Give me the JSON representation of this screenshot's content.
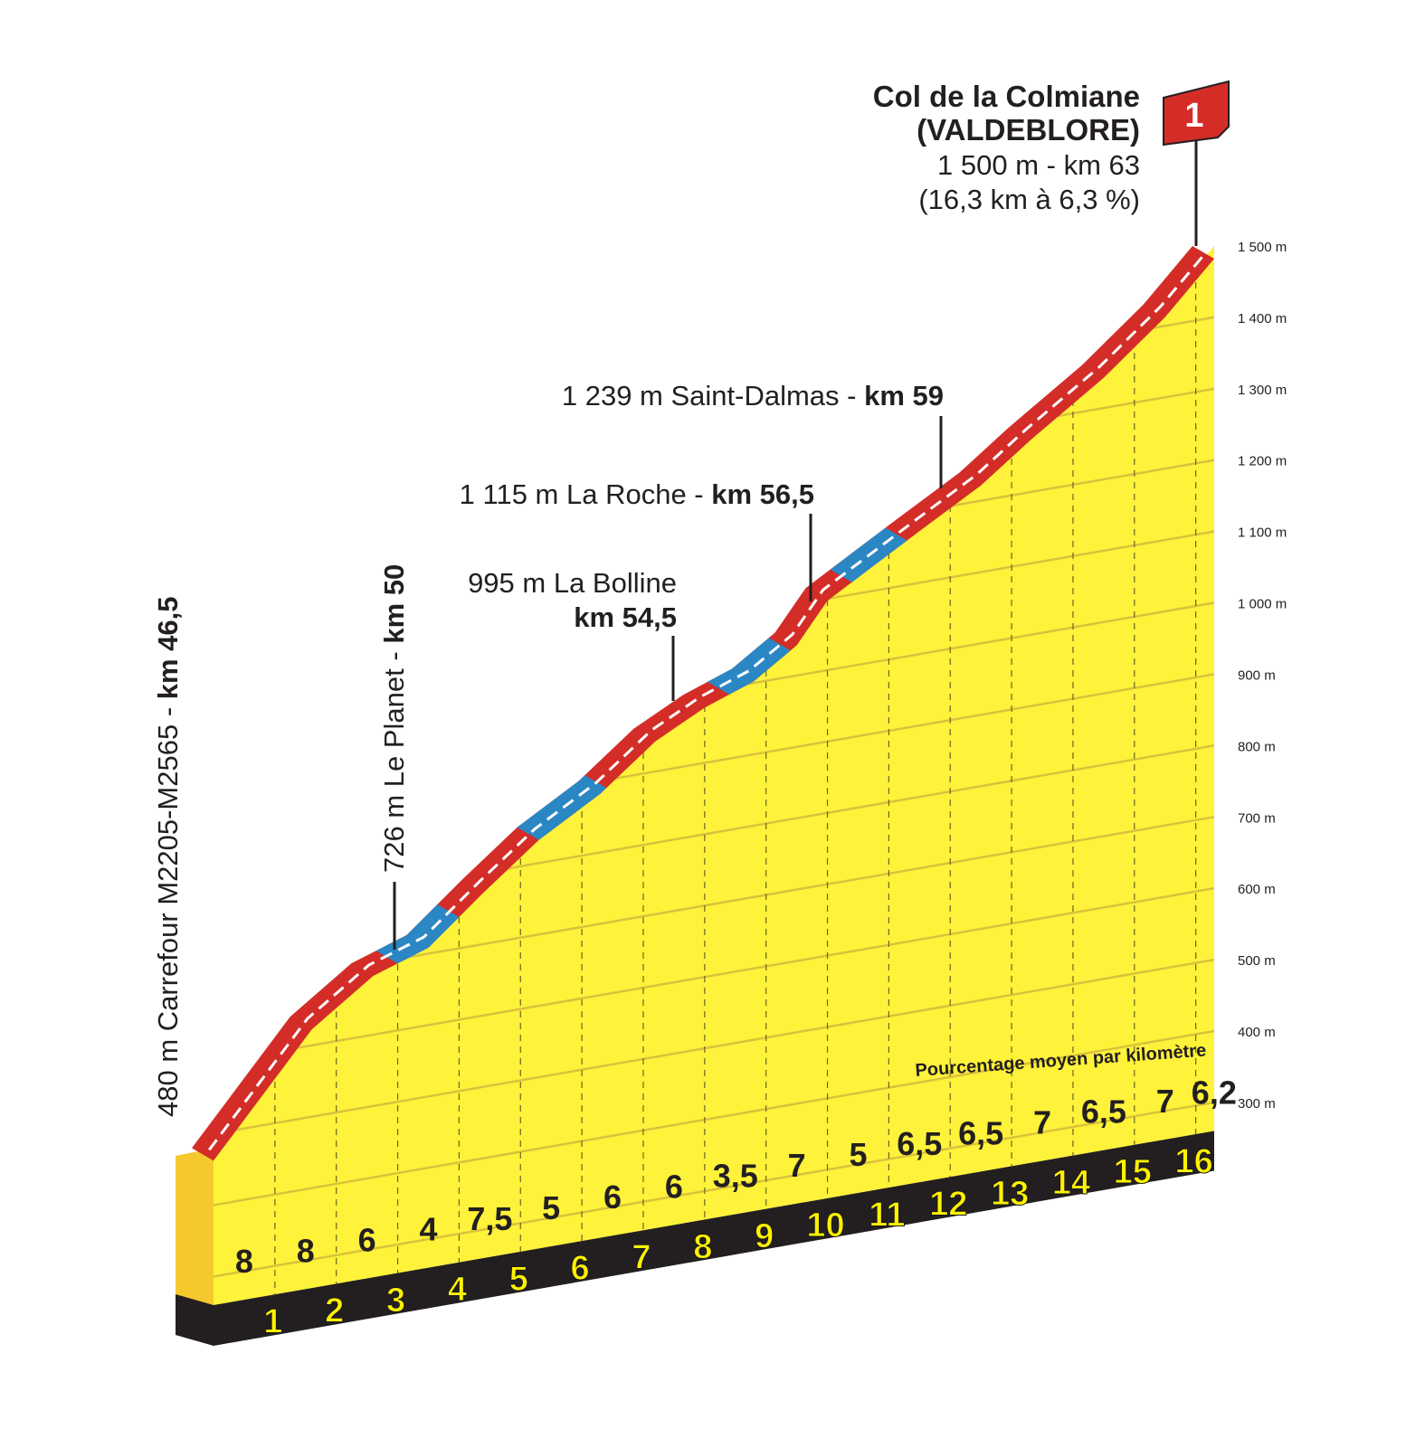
{
  "climb": {
    "name_line1": "Col de la Colmiane",
    "name_line2": "(VALDEBLORE)",
    "summary_line1": "1 500 m - km 63",
    "summary_line2": "(16,3 km à 6,3 %)",
    "category_badge": "1"
  },
  "annotations": {
    "start": {
      "text": "480 m Carrefour M2205-M2565 - ",
      "km": "km 46,5"
    },
    "planet": {
      "text": "726 m Le Planet - ",
      "km": "km 50"
    },
    "bolline": {
      "text": "995 m La Bolline",
      "km": "km 54,5"
    },
    "roche": {
      "text": "1 115 m La Roche - ",
      "km": "km 56,5"
    },
    "dalmas": {
      "text": "1 239 m Saint-Dalmas - ",
      "km": "km 59"
    }
  },
  "legend_note": "Pourcentage moyen par kilomètre",
  "y_axis_labels": [
    "300 m",
    "400 m",
    "500 m",
    "600 m",
    "700 m",
    "800 m",
    "900 m",
    "1 000 m",
    "1 100 m",
    "1 200 m",
    "1 300 m",
    "1 400 m",
    "1 500 m"
  ],
  "colors": {
    "fill": "#fff23a",
    "front_face": "#f5c92e",
    "road_steep": "#d42d27",
    "road_easy": "#2b87c4",
    "base": "#231f20",
    "km_number": "#fff200"
  },
  "chart_data": {
    "type": "area",
    "title": "Col de la Colmiane (VALDEBLORE)",
    "x_unit": "km",
    "y_unit": "m",
    "ylim": [
      300,
      1500
    ],
    "y_ticks": [
      300,
      400,
      500,
      600,
      700,
      800,
      900,
      1000,
      1100,
      1200,
      1300,
      1400,
      1500
    ],
    "km_markers": [
      "1",
      "2",
      "3",
      "4",
      "5",
      "6",
      "7",
      "8",
      "9",
      "10",
      "11",
      "12",
      "13",
      "14",
      "15",
      "16"
    ],
    "gradients_per_km": [
      "8",
      "8",
      "6",
      "4",
      "7,5",
      "5",
      "6",
      "6",
      "3,5",
      "7",
      "5",
      "6,5",
      "6,5",
      "7",
      "6,5",
      "7",
      "6,2"
    ],
    "profile": [
      {
        "km": 0,
        "alt": 480
      },
      {
        "km": 1.6,
        "alt": 640
      },
      {
        "km": 2.6,
        "alt": 700
      },
      {
        "km": 3.5,
        "alt": 726
      },
      {
        "km": 4.4,
        "alt": 790
      },
      {
        "km": 5.3,
        "alt": 850
      },
      {
        "km": 6.3,
        "alt": 900
      },
      {
        "km": 7.2,
        "alt": 960
      },
      {
        "km": 8.0,
        "alt": 995
      },
      {
        "km": 8.8,
        "alt": 1020
      },
      {
        "km": 9.5,
        "alt": 1060
      },
      {
        "km": 10.0,
        "alt": 1115
      },
      {
        "km": 10.7,
        "alt": 1150
      },
      {
        "km": 11.5,
        "alt": 1190
      },
      {
        "km": 12.5,
        "alt": 1239
      },
      {
        "km": 13.3,
        "alt": 1290
      },
      {
        "km": 14.5,
        "alt": 1360
      },
      {
        "km": 15.5,
        "alt": 1430
      },
      {
        "km": 16.3,
        "alt": 1500
      }
    ],
    "easy_sections_km": [
      [
        3.0,
        4.0
      ],
      [
        5.3,
        6.4
      ],
      [
        8.4,
        9.4
      ],
      [
        10.4,
        11.3
      ]
    ]
  }
}
